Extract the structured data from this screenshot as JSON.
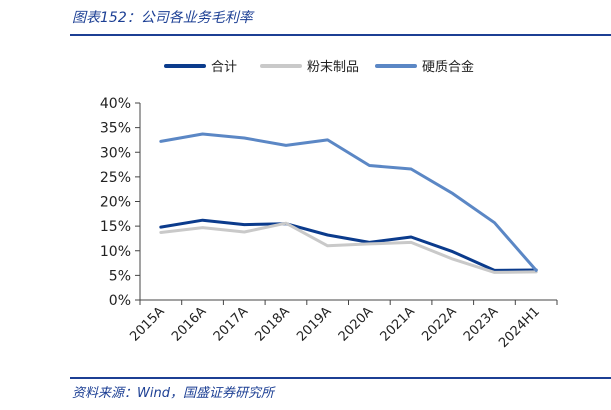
{
  "header": {
    "title": "图表152：公司各业务毛利率"
  },
  "footer": {
    "source": "资料来源：Wind，国盛证券研究所"
  },
  "chart_data": {
    "type": "line",
    "categories": [
      "2015A",
      "2016A",
      "2017A",
      "2018A",
      "2019A",
      "2020A",
      "2021A",
      "2022A",
      "2023A",
      "2024H1"
    ],
    "series": [
      {
        "name": "合计",
        "color": "#0b3b8c",
        "values": [
          14.8,
          16.2,
          15.3,
          15.5,
          13.2,
          11.7,
          12.8,
          9.8,
          6.0,
          6.1
        ]
      },
      {
        "name": "粉末制品",
        "color": "#c9c9c9",
        "values": [
          13.7,
          14.7,
          13.8,
          15.6,
          11.0,
          11.4,
          11.7,
          8.3,
          5.6,
          5.7
        ]
      },
      {
        "name": "硬质合金",
        "color": "#5b87c5",
        "values": [
          32.2,
          33.7,
          32.9,
          31.4,
          32.5,
          27.3,
          26.6,
          21.6,
          15.7,
          6.0
        ]
      }
    ],
    "yticks": [
      "0%",
      "5%",
      "10%",
      "15%",
      "20%",
      "25%",
      "30%",
      "35%",
      "40%"
    ],
    "ylim": [
      0,
      40
    ],
    "legend_position": "top",
    "grid": false
  }
}
